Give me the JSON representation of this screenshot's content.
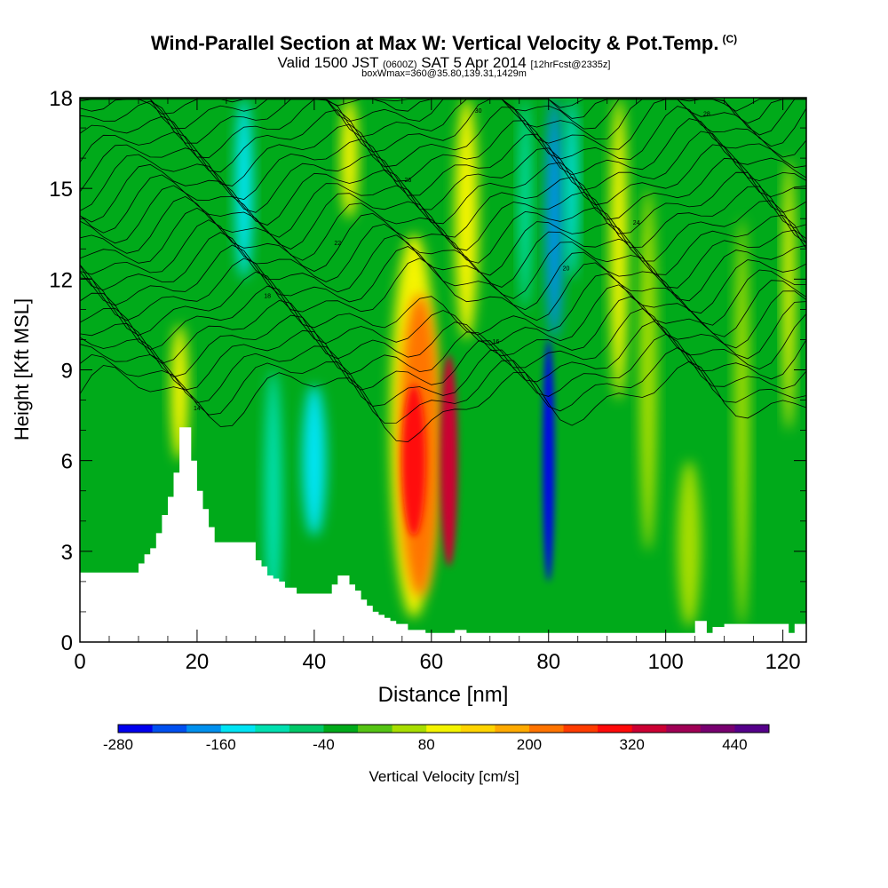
{
  "header": {
    "title": "Wind-Parallel Section at Max W: Vertical Velocity & Pot.Temp.",
    "title_mark": "(C)",
    "valid_prefix": "Valid 1500 JST",
    "valid_utc": "(0600Z)",
    "valid_date": "SAT 5 Apr 2014",
    "forecast": "[12hrFcst@2335z]",
    "box_info": "boxWmax=360@35.80,139.31,1429m"
  },
  "chart_data": {
    "type": "heatmap",
    "xlabel": "Distance [nm]",
    "ylabel": "Height [Kft MSL]",
    "xlim": [
      0,
      124
    ],
    "ylim": [
      0,
      18
    ],
    "x_ticks": [
      0,
      20,
      40,
      60,
      80,
      100,
      120
    ],
    "y_ticks": [
      0,
      3,
      6,
      9,
      12,
      15,
      18
    ],
    "colorbar": {
      "label": "Vertical Velocity [cm/s]",
      "levels": [
        -280,
        -240,
        -200,
        -160,
        -120,
        -80,
        -40,
        0,
        40,
        80,
        120,
        160,
        200,
        240,
        280,
        320,
        360,
        400,
        440,
        480
      ],
      "colors": [
        "#0000ee",
        "#0050f0",
        "#0090ee",
        "#00e4f4",
        "#00e0b0",
        "#00c868",
        "#00aa1a",
        "#55c414",
        "#a8de00",
        "#f4f400",
        "#ffd400",
        "#ffaa00",
        "#ff7400",
        "#ff3c00",
        "#ff0a0a",
        "#cc0033",
        "#a00055",
        "#780070",
        "#55008a"
      ],
      "tick_labels": [
        "-280",
        "-160",
        "-40",
        "80",
        "200",
        "320",
        "440"
      ],
      "tick_values": [
        -280,
        -160,
        -40,
        80,
        200,
        320,
        440
      ]
    },
    "vertical_velocity_features": [
      {
        "x": 17,
        "y_from": 6,
        "y_to": 10.5,
        "w": 3,
        "value": 100
      },
      {
        "x": 28,
        "y_from": 12,
        "y_to": 18,
        "w": 3,
        "value": -140
      },
      {
        "x": 33,
        "y_from": 0.5,
        "y_to": 9,
        "w": 3,
        "value": -120
      },
      {
        "x": 40,
        "y_from": 3.5,
        "y_to": 8.5,
        "w": 4,
        "value": -140
      },
      {
        "x": 46,
        "y_from": 14,
        "y_to": 18,
        "w": 3,
        "value": 80
      },
      {
        "x": 57,
        "y_from": 0.8,
        "y_to": 13.5,
        "w": 8,
        "value": 100
      },
      {
        "x": 58,
        "y_from": 1.5,
        "y_to": 11.5,
        "w": 7,
        "value": 200
      },
      {
        "x": 57,
        "y_from": 3.5,
        "y_to": 8.5,
        "w": 4,
        "value": 300
      },
      {
        "x": 63,
        "y_from": 2.5,
        "y_to": 9.5,
        "w": 3,
        "value": 330
      },
      {
        "x": 66,
        "y_from": 10,
        "y_to": 18,
        "w": 4,
        "value": 100
      },
      {
        "x": 76,
        "y_from": 11,
        "y_to": 18,
        "w": 2,
        "value": -120
      },
      {
        "x": 81,
        "y_from": 10,
        "y_to": 18,
        "w": 3,
        "value": -200
      },
      {
        "x": 80,
        "y_from": 2,
        "y_to": 10,
        "w": 2,
        "value": -260
      },
      {
        "x": 84,
        "y_from": 12,
        "y_to": 18,
        "w": 2,
        "value": -140
      },
      {
        "x": 92,
        "y_from": 8,
        "y_to": 18,
        "w": 3,
        "value": 90
      },
      {
        "x": 97,
        "y_from": 3,
        "y_to": 15,
        "w": 3,
        "value": 60
      },
      {
        "x": 104,
        "y_from": 0.5,
        "y_to": 6,
        "w": 4,
        "value": 60
      },
      {
        "x": 113,
        "y_from": 0.5,
        "y_to": 14,
        "w": 2.5,
        "value": 70
      },
      {
        "x": 121,
        "y_from": 7,
        "y_to": 16,
        "w": 2,
        "value": 80
      }
    ],
    "terrain": {
      "x": [
        0,
        3,
        10,
        11,
        12,
        13,
        14,
        15,
        16,
        17,
        18,
        19,
        20,
        21,
        22,
        23,
        24,
        26,
        28,
        30,
        31,
        32,
        33,
        34,
        35,
        36,
        37,
        38,
        40,
        42,
        43,
        44,
        45,
        46,
        47,
        48,
        49,
        50,
        51,
        52,
        53,
        54,
        56,
        58,
        59,
        60,
        62,
        64,
        66,
        70,
        75,
        80,
        85,
        90,
        95,
        100,
        104,
        105,
        106,
        107,
        108,
        109,
        110,
        115,
        120,
        121,
        122,
        124
      ],
      "y": [
        2.3,
        2.3,
        2.6,
        2.9,
        3.1,
        3.6,
        4.2,
        4.8,
        5.6,
        7.1,
        7.1,
        6.0,
        5.0,
        4.4,
        3.8,
        3.3,
        3.3,
        3.3,
        3.3,
        2.7,
        2.5,
        2.2,
        2.1,
        2.0,
        1.8,
        1.8,
        1.6,
        1.6,
        1.6,
        1.6,
        1.9,
        2.2,
        2.2,
        1.9,
        1.7,
        1.4,
        1.2,
        1.0,
        0.9,
        0.8,
        0.7,
        0.6,
        0.4,
        0.4,
        0.3,
        0.3,
        0.3,
        0.4,
        0.3,
        0.3,
        0.3,
        0.3,
        0.3,
        0.3,
        0.3,
        0.3,
        0.3,
        0.7,
        0.7,
        0.3,
        0.5,
        0.5,
        0.6,
        0.6,
        0.6,
        0.3,
        0.6,
        0.6
      ]
    },
    "potential_temperature_contour_labels": [
      "14",
      "16",
      "18",
      "20",
      "22",
      "24",
      "26",
      "28",
      "30"
    ],
    "grid": false
  }
}
